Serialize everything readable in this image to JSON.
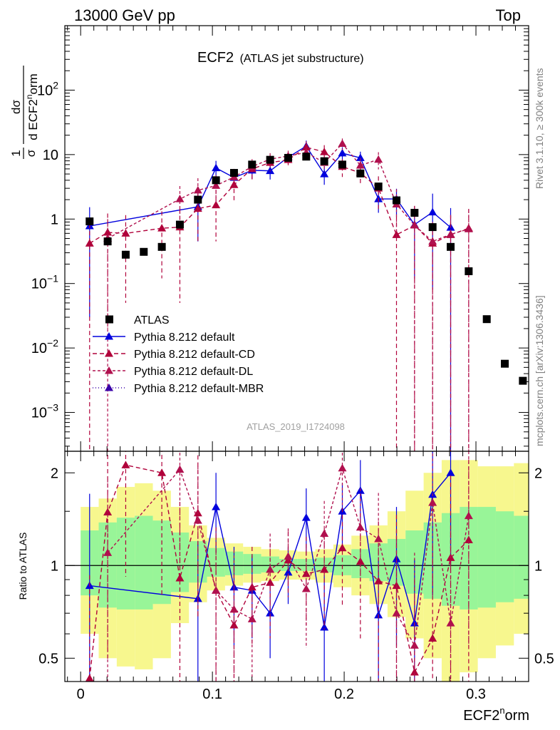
{
  "header": {
    "left": "13000 GeV pp",
    "right": "Top"
  },
  "side_labels": {
    "rivet": "Rivet 3.1.10, ≥ 300k events",
    "mcplots": "mcplots.cern.ch [arXiv:1306.3436]"
  },
  "plot_title": {
    "main": "ECF2",
    "sub": "(ATLAS jet substructure)"
  },
  "analysis_id": "ATLAS_2019_I1724098",
  "y_axis_label": {
    "pre": "1",
    "den": "σ",
    "dsig": "dσ",
    "dvar": "d ECF2",
    "sup": "n",
    "post": "orm"
  },
  "x_axis_label": {
    "main": "ECF2",
    "sup": "n",
    "post": "orm"
  },
  "ratio_axis_label": "Ratio to ATLAS",
  "legend": [
    {
      "label": "ATLAS",
      "color": "#000000"
    },
    {
      "label": "Pythia 8.212 default",
      "color": "#0000dd"
    },
    {
      "label": "Pythia 8.212 default-CD",
      "color": "#b0003a"
    },
    {
      "label": "Pythia 8.212 default-DL",
      "color": "#b0104e"
    },
    {
      "label": "Pythia 8.212 default-MBR",
      "color": "#3a00a8"
    }
  ],
  "colors": {
    "band_inner": "#98f598",
    "band_outer": "#f7f78e",
    "default": "#0000dd",
    "cd": "#b0003a",
    "dl": "#b0104e",
    "mbr": "#3a00a8"
  },
  "chart_data": {
    "type": "scatter",
    "title": "ECF2 (ATLAS jet substructure)",
    "xlabel": "ECF2norm",
    "ylabel": "1/sigma dsigma/d ECF2norm",
    "xlim": [
      -0.012,
      0.34
    ],
    "ylim": [
      0.00025,
      1000
    ],
    "yscale": "log",
    "ratio_ylim": [
      0.42,
      2.35
    ],
    "x_ticks": [
      {
        "v": 0,
        "l": "0"
      },
      {
        "v": 0.1,
        "l": "0.1"
      },
      {
        "v": 0.2,
        "l": "0.2"
      },
      {
        "v": 0.3,
        "l": "0.3"
      }
    ],
    "y_ticks": [
      {
        "v": 0.001,
        "b": "10",
        "e": "−3"
      },
      {
        "v": 0.01,
        "b": "10",
        "e": "−2"
      },
      {
        "v": 0.1,
        "b": "10",
        "e": "−1"
      },
      {
        "v": 1,
        "b": "1",
        "e": ""
      },
      {
        "v": 10,
        "b": "10",
        "e": ""
      },
      {
        "v": 100,
        "b": "10",
        "e": "2"
      }
    ],
    "ratio_ticks": [
      {
        "v": 0.5,
        "l": "0.5"
      },
      {
        "v": 1,
        "l": "1"
      },
      {
        "v": 2,
        "l": "2"
      }
    ],
    "atlas": {
      "x": [
        0.0068,
        0.0205,
        0.0342,
        0.0479,
        0.0616,
        0.0753,
        0.089,
        0.1027,
        0.1164,
        0.1301,
        0.1438,
        0.1575,
        0.1712,
        0.1849,
        0.1986,
        0.2123,
        0.226,
        0.2397,
        0.2534,
        0.2671,
        0.2808,
        0.2945,
        0.3082,
        0.3219,
        0.3356
      ],
      "y": [
        0.92,
        0.45,
        0.28,
        0.31,
        0.37,
        0.82,
        2.0,
        4.0,
        5.2,
        7.0,
        8.3,
        8.9,
        9.3,
        7.9,
        7.0,
        5.1,
        3.2,
        1.95,
        1.25,
        0.75,
        0.37,
        0.155,
        0.028,
        0.0057,
        0.0031
      ]
    },
    "band_edges": [
      0,
      0.0137,
      0.0274,
      0.0411,
      0.0548,
      0.0685,
      0.0822,
      0.0959,
      0.1096,
      0.1233,
      0.137,
      0.1507,
      0.1644,
      0.1781,
      0.1918,
      0.2055,
      0.2192,
      0.2329,
      0.2466,
      0.2603,
      0.274,
      0.2877,
      0.3014,
      0.3151,
      0.3288,
      0.3425
    ],
    "band_inner": [
      [
        0.8,
        1.3
      ],
      [
        0.73,
        1.38
      ],
      [
        0.72,
        1.43
      ],
      [
        0.72,
        1.45
      ],
      [
        0.75,
        1.4
      ],
      [
        0.82,
        1.28
      ],
      [
        0.88,
        1.2
      ],
      [
        0.92,
        1.14
      ],
      [
        0.93,
        1.11
      ],
      [
        0.94,
        1.09
      ],
      [
        0.95,
        1.07
      ],
      [
        0.96,
        1.05
      ],
      [
        0.96,
        1.05
      ],
      [
        0.95,
        1.06
      ],
      [
        0.93,
        1.08
      ],
      [
        0.91,
        1.13
      ],
      [
        0.89,
        1.18
      ],
      [
        0.86,
        1.22
      ],
      [
        0.81,
        1.3
      ],
      [
        0.78,
        1.38
      ],
      [
        0.74,
        1.48
      ],
      [
        0.72,
        1.55
      ],
      [
        0.73,
        1.55
      ],
      [
        0.76,
        1.5
      ],
      [
        0.78,
        1.45
      ]
    ],
    "band_outer": [
      [
        0.6,
        1.55
      ],
      [
        0.5,
        1.65
      ],
      [
        0.47,
        1.8
      ],
      [
        0.46,
        1.85
      ],
      [
        0.5,
        1.75
      ],
      [
        0.65,
        1.55
      ],
      [
        0.76,
        1.35
      ],
      [
        0.83,
        1.23
      ],
      [
        0.86,
        1.18
      ],
      [
        0.88,
        1.15
      ],
      [
        0.89,
        1.13
      ],
      [
        0.9,
        1.12
      ],
      [
        0.9,
        1.11
      ],
      [
        0.88,
        1.13
      ],
      [
        0.85,
        1.17
      ],
      [
        0.8,
        1.25
      ],
      [
        0.75,
        1.35
      ],
      [
        0.68,
        1.5
      ],
      [
        0.58,
        1.75
      ],
      [
        0.5,
        2.0
      ],
      [
        0.42,
        2.2
      ],
      [
        0.45,
        2.2
      ],
      [
        0.5,
        2.1
      ],
      [
        0.55,
        2.1
      ],
      [
        0.6,
        2.15
      ]
    ],
    "series": [
      {
        "name": "Pythia 8.212 default",
        "key": "default",
        "dash": "",
        "x": [
          0.0068,
          0.089,
          0.1027,
          0.1164,
          0.1301,
          0.1438,
          0.1575,
          0.1712,
          0.1849,
          0.1986,
          0.2123,
          0.226,
          0.2397,
          0.2534,
          0.2671,
          0.2808
        ],
        "y": [
          0.78,
          1.55,
          6.2,
          4.4,
          5.7,
          5.6,
          9.1,
          13.5,
          5.0,
          10.5,
          8.9,
          2.05,
          2.05,
          0.82,
          1.28,
          0.74
        ],
        "yerr": [
          0.75,
          1.1,
          1.8,
          1.2,
          1.5,
          1.5,
          1.8,
          3.0,
          1.6,
          2.5,
          2.2,
          0.8,
          0.9,
          0.7,
          1.2,
          0.74
        ],
        "ratio": [
          0.86,
          0.78,
          1.55,
          0.85,
          0.83,
          0.7,
          0.95,
          1.43,
          0.63,
          1.5,
          1.75,
          0.69,
          1.05,
          0.65,
          1.7,
          2.0
        ],
        "rerr": [
          0.85,
          0.4,
          0.45,
          0.3,
          0.25,
          0.2,
          0.2,
          0.35,
          0.3,
          0.35,
          0.45,
          0.35,
          0.5,
          0.4,
          0.9,
          1.0
        ]
      },
      {
        "name": "Pythia 8.212 default-CD",
        "key": "cd",
        "dash": "6 4",
        "x": [
          0.0068,
          0.0205,
          0.0342,
          0.0616,
          0.0753,
          0.089,
          0.1027,
          0.1164,
          0.1301,
          0.1438,
          0.1575,
          0.1712,
          0.1849,
          0.1986,
          0.2123,
          0.226,
          0.2397,
          0.2534,
          0.2671,
          0.2808,
          0.2945
        ],
        "y": [
          0.42,
          0.62,
          0.6,
          0.72,
          0.75,
          1.45,
          1.65,
          3.4,
          6.0,
          7.5,
          8.3,
          13.0,
          11.0,
          6.5,
          5.2,
          3.0,
          0.57,
          0.8,
          0.42,
          0.57,
          0.72
        ],
        "yerr": [
          0.42,
          0.6,
          0.55,
          0.6,
          0.7,
          1.0,
          1.2,
          1.5,
          2.0,
          2.0,
          2.0,
          3.0,
          3.0,
          2.0,
          1.8,
          1.6,
          0.57,
          0.8,
          0.42,
          0.57,
          0.72
        ],
        "ratio": [
          0.43,
          1.49,
          2.12,
          2.0,
          0.91,
          1.48,
          0.83,
          0.64,
          0.85,
          0.88,
          1.04,
          0.94,
          0.97,
          1.14,
          1.03,
          0.89,
          0.86,
          0.45,
          0.58,
          1.06,
          1.21
        ],
        "rerr": [
          0.5,
          1.0,
          1.2,
          1.2,
          0.7,
          0.8,
          0.5,
          0.35,
          0.3,
          0.3,
          0.25,
          0.3,
          0.35,
          0.4,
          0.45,
          0.5,
          0.6,
          0.45,
          0.58,
          0.9,
          1.0
        ]
      },
      {
        "name": "Pythia 8.212 default-DL",
        "key": "dl",
        "dash": "4 3",
        "x": [
          0.0205,
          0.0753,
          0.089,
          0.1027,
          0.1164,
          0.1301,
          0.1438,
          0.1575,
          0.1712,
          0.1849,
          0.1986,
          0.2123,
          0.226,
          0.2397,
          0.2534,
          0.2671,
          0.2808,
          0.2945
        ],
        "y": [
          0.5,
          2.05,
          2.8,
          3.3,
          4.5,
          6.5,
          8.5,
          9.5,
          10.8,
          7.5,
          14.8,
          6.8,
          8.4,
          1.7,
          0.8,
          0.45,
          0.58,
          0.7
        ],
        "yerr": [
          0.5,
          1.2,
          1.5,
          1.5,
          1.5,
          2.0,
          2.0,
          2.0,
          2.5,
          2.0,
          3.0,
          2.0,
          2.5,
          1.2,
          0.8,
          0.45,
          0.58,
          0.7
        ],
        "ratio": [
          1.1,
          2.05,
          1.4,
          0.83,
          0.72,
          0.67,
          0.97,
          1.07,
          0.84,
          1.27,
          2.07,
          1.33,
          1.22,
          0.7,
          0.55,
          1.6,
          0.65,
          1.45
        ],
        "rerr": [
          0.8,
          1.0,
          0.7,
          0.5,
          0.4,
          0.3,
          0.3,
          0.25,
          0.3,
          0.35,
          0.5,
          0.45,
          0.5,
          0.6,
          0.55,
          0.8,
          0.65,
          0.9
        ]
      },
      {
        "name": "Pythia 8.212 default-MBR",
        "key": "mbr",
        "dash": "1 3",
        "x": [],
        "y": [],
        "yerr": [],
        "ratio": [],
        "rerr": []
      }
    ]
  }
}
